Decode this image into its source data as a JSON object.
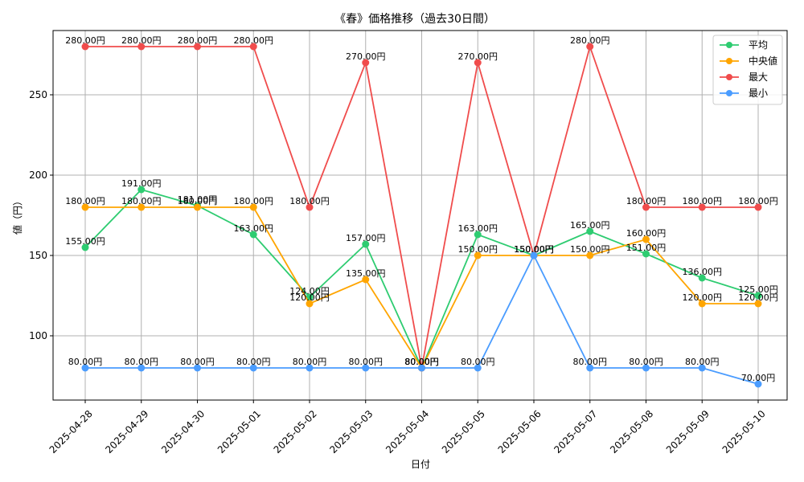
{
  "chart_data": {
    "type": "line",
    "title": "《春》価格推移（過去30日間）",
    "xlabel": "日付",
    "ylabel": "値（円）",
    "ylim": [
      60,
      290
    ],
    "yticks": [
      100,
      150,
      200,
      250
    ],
    "grid": true,
    "legend_position": "top-right",
    "unit_suffix": "円",
    "categories": [
      "2025-04-28",
      "2025-04-29",
      "2025-04-30",
      "2025-05-01",
      "2025-05-02",
      "2025-05-03",
      "2025-05-04",
      "2025-05-05",
      "2025-05-06",
      "2025-05-07",
      "2025-05-08",
      "2025-05-09",
      "2025-05-10"
    ],
    "series": [
      {
        "name": "平均",
        "color": "#2ecc71",
        "values": [
          155,
          191,
          181,
          163,
          124,
          157,
          80,
          163,
          150,
          165,
          151,
          136,
          125
        ]
      },
      {
        "name": "中央値",
        "color": "#ffa500",
        "values": [
          180,
          180,
          180,
          180,
          120,
          135,
          80,
          150,
          150,
          150,
          160,
          120,
          120
        ]
      },
      {
        "name": "最大",
        "color": "#f04c4c",
        "values": [
          280,
          280,
          280,
          280,
          180,
          270,
          80,
          270,
          150,
          280,
          180,
          180,
          180
        ]
      },
      {
        "name": "最小",
        "color": "#4a9cff",
        "values": [
          80,
          80,
          80,
          80,
          80,
          80,
          80,
          80,
          150,
          80,
          80,
          80,
          70
        ]
      }
    ]
  }
}
